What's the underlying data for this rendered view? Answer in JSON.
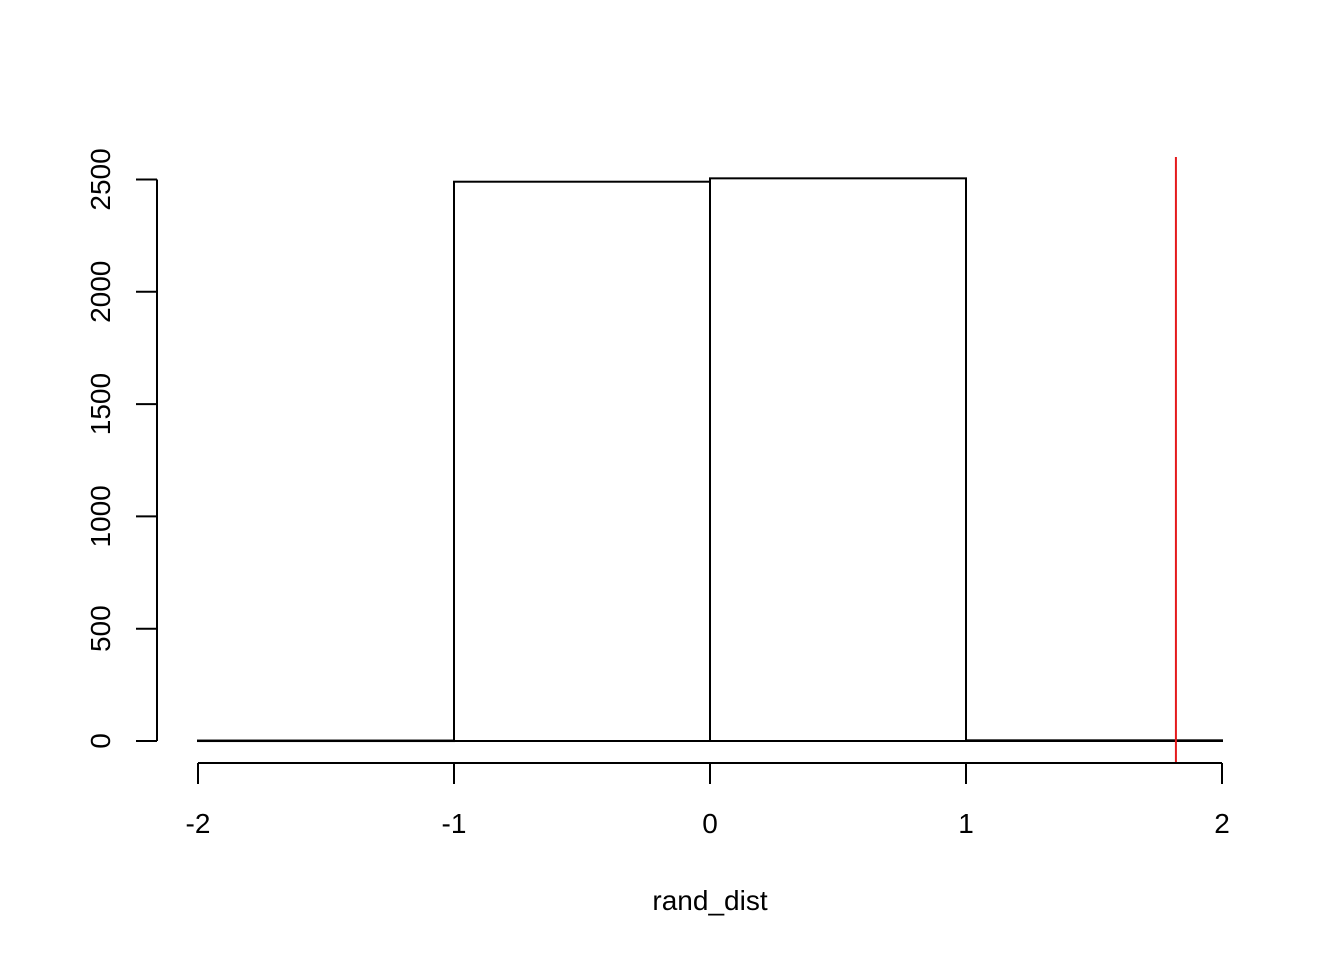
{
  "chart_data": {
    "type": "bar",
    "title": "",
    "xlabel": "rand_dist",
    "ylabel": "",
    "xlim": [
      -2,
      2
    ],
    "ylim": [
      0,
      2600
    ],
    "bins": [
      {
        "x0": -2,
        "x1": -1,
        "count": 2
      },
      {
        "x0": -1,
        "x1": 0,
        "count": 2490
      },
      {
        "x0": 0,
        "x1": 1,
        "count": 2505
      },
      {
        "x0": 1,
        "x1": 2,
        "count": 3
      }
    ],
    "x_ticks": [
      -2,
      -1,
      0,
      1,
      2
    ],
    "x_tick_labels": [
      "-2",
      "-1",
      "0",
      "1",
      "2"
    ],
    "y_ticks": [
      0,
      500,
      1000,
      1500,
      2000,
      2500
    ],
    "y_tick_labels": [
      "0",
      "500",
      "1000",
      "1500",
      "2000",
      "2500"
    ],
    "vline": {
      "x": 1.82,
      "color": "#e41a1c"
    },
    "grid": false,
    "legend": "none"
  }
}
